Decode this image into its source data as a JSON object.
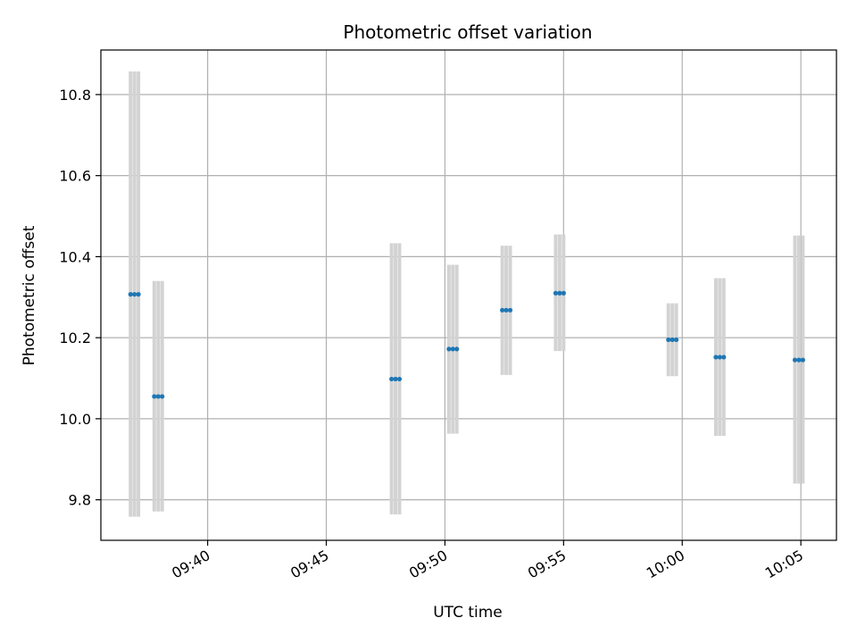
{
  "chart_data": {
    "type": "scatter",
    "title": "Photometric offset variation",
    "xlabel": "UTC time",
    "ylabel": "Photometric offset",
    "x_ticks": [
      "09:40",
      "09:45",
      "09:50",
      "09:55",
      "10:00",
      "10:05"
    ],
    "xlim": [
      "09:35:30",
      "10:06:30"
    ],
    "y_ticks": [
      "9.8",
      "10.0",
      "10.2",
      "10.4",
      "10.6",
      "10.8"
    ],
    "ylim": [
      9.7,
      10.91
    ],
    "grid": true,
    "colors": {
      "points": "#1f77b4",
      "errorbars": "#d3d3d3",
      "grid": "#b0b0b0"
    },
    "series": [
      {
        "points": [
          {
            "t": [
              "09:36:45",
              "09:36:55",
              "09:37:05"
            ],
            "y": 10.307,
            "ymin": 9.758,
            "ymax": 10.857
          },
          {
            "t": [
              "09:37:45",
              "09:37:55",
              "09:38:05"
            ],
            "y": 10.055,
            "ymin": 9.771,
            "ymax": 10.34
          },
          {
            "t": [
              "09:47:45",
              "09:47:55",
              "09:48:05"
            ],
            "y": 10.098,
            "ymin": 9.764,
            "ymax": 10.433
          },
          {
            "t": [
              "09:50:10",
              "09:50:20",
              "09:50:30"
            ],
            "y": 10.172,
            "ymin": 9.963,
            "ymax": 10.38
          },
          {
            "t": [
              "09:52:25",
              "09:52:35",
              "09:52:45"
            ],
            "y": 10.268,
            "ymin": 10.108,
            "ymax": 10.427
          },
          {
            "t": [
              "09:54:40",
              "09:54:50",
              "09:55:00"
            ],
            "y": 10.31,
            "ymin": 10.167,
            "ymax": 10.455
          },
          {
            "t": [
              "09:59:25",
              "09:59:35",
              "09:59:45"
            ],
            "y": 10.195,
            "ymin": 10.105,
            "ymax": 10.285
          },
          {
            "t": [
              "10:01:25",
              "10:01:35",
              "10:01:45"
            ],
            "y": 10.152,
            "ymin": 9.958,
            "ymax": 10.347
          },
          {
            "t": [
              "10:04:45",
              "10:04:55",
              "10:05:05"
            ],
            "y": 10.145,
            "ymin": 9.84,
            "ymax": 10.452
          }
        ]
      }
    ]
  }
}
